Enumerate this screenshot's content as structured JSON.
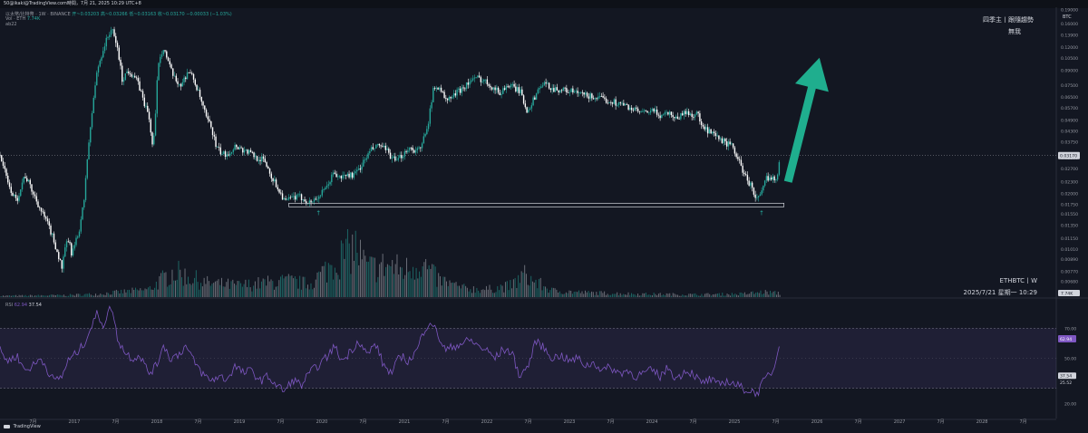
{
  "window": {
    "title": "50@ikaki@TradingView.com時間，7月 21, 2025 10:29 UTC+8"
  },
  "legend": {
    "symbol_line": "以太幣/比特幣 · 1W · BINANCE",
    "ohlc_open": "开~0.03203",
    "ohlc_high": "高~0.03266",
    "ohlc_low": "低~0.03163",
    "ohlc_close": "收~0.03170",
    "ohlc_change": "−0.00033 (−1.03%)",
    "volume_line": "Vol · ETH",
    "volume_value": "7.74K",
    "extra_line": "ab22"
  },
  "rsi_legend": {
    "label": "RSI",
    "value1": "62.94",
    "value2": "37.54"
  },
  "annotations": {
    "watermark_line1": "四季主丨跟隨趨勢",
    "watermark_line2": "無我",
    "symbol_tf": "ETHBTC丨W",
    "datetime": "2025/7/21 星期一 10:29"
  },
  "footer": {
    "brand": "TradingView"
  },
  "colors": {
    "background": "#131722",
    "up": "#26a69a",
    "down": "#ffffff",
    "arrow": "#1fae8e",
    "rsi_line": "#7e57c2",
    "rsi_band": "#7e57c2"
  },
  "chart_data": {
    "type": "candlestick",
    "symbol": "ETHBTC",
    "timeframe": "1W",
    "price_axis": {
      "scale": "log",
      "ylim": [
        0.0056,
        0.195
      ],
      "ticks": [
        0.19,
        0.16,
        0.139,
        0.12,
        0.105,
        0.09,
        0.075,
        0.065,
        0.057,
        0.049,
        0.043,
        0.0375,
        0.031,
        0.027,
        0.023,
        0.02,
        0.0175,
        0.0155,
        0.0135,
        0.0115,
        0.0101,
        0.0089,
        0.0077,
        0.0068,
        0.006
      ],
      "tick_labels": [
        "0.19000",
        "0.16000",
        "0.13900",
        "0.12000",
        "0.10500",
        "0.09000",
        "0.07500",
        "0.06500",
        "0.05700",
        "0.04900",
        "0.04300",
        "0.03750",
        "0.03100",
        "0.02700",
        "0.02300",
        "0.02000",
        "0.01750",
        "0.01550",
        "0.01350",
        "0.01150",
        "0.01010",
        "0.00890",
        "0.00770",
        "0.00680",
        "0.00600"
      ],
      "unit_label": "BTC",
      "last_price": 0.0317,
      "last_price_label": "0.03170",
      "volume_label": "7.74K"
    },
    "time_axis": {
      "labels": [
        "7月",
        "2017",
        "7月",
        "2018",
        "7月",
        "2019",
        "7月",
        "2020",
        "7月",
        "2021",
        "7月",
        "2022",
        "7月",
        "2023",
        "7月",
        "2024",
        "7月",
        "2025",
        "7月",
        "2026",
        "7月",
        "2027",
        "7月",
        "2028",
        "7月"
      ],
      "positions": [
        2016.5,
        2017.0,
        2017.5,
        2018.0,
        2018.5,
        2019.0,
        2019.5,
        2020.0,
        2020.5,
        2021.0,
        2021.5,
        2022.0,
        2022.5,
        2023.0,
        2023.5,
        2024.0,
        2024.5,
        2025.0,
        2025.5,
        2026.0,
        2026.5,
        2027.0,
        2027.5,
        2028.0,
        2028.5
      ],
      "range": [
        2016.1,
        2028.9
      ]
    },
    "price_path": [
      [
        2016.1,
        0.032
      ],
      [
        2016.2,
        0.022
      ],
      [
        2016.3,
        0.018
      ],
      [
        2016.4,
        0.025
      ],
      [
        2016.5,
        0.02
      ],
      [
        2016.6,
        0.016
      ],
      [
        2016.7,
        0.013
      ],
      [
        2016.8,
        0.0095
      ],
      [
        2016.85,
        0.008
      ],
      [
        2016.92,
        0.0115
      ],
      [
        2016.97,
        0.0095
      ],
      [
        2017.05,
        0.012
      ],
      [
        2017.12,
        0.018
      ],
      [
        2017.2,
        0.045
      ],
      [
        2017.28,
        0.09
      ],
      [
        2017.36,
        0.12
      ],
      [
        2017.45,
        0.15
      ],
      [
        2017.52,
        0.12
      ],
      [
        2017.58,
        0.08
      ],
      [
        2017.65,
        0.09
      ],
      [
        2017.72,
        0.085
      ],
      [
        2017.78,
        0.075
      ],
      [
        2017.85,
        0.06
      ],
      [
        2017.9,
        0.052
      ],
      [
        2017.95,
        0.035
      ],
      [
        2017.98,
        0.045
      ],
      [
        2018.02,
        0.1
      ],
      [
        2018.08,
        0.12
      ],
      [
        2018.15,
        0.095
      ],
      [
        2018.22,
        0.08
      ],
      [
        2018.3,
        0.075
      ],
      [
        2018.38,
        0.09
      ],
      [
        2018.45,
        0.08
      ],
      [
        2018.52,
        0.065
      ],
      [
        2018.6,
        0.05
      ],
      [
        2018.66,
        0.045
      ],
      [
        2018.72,
        0.035
      ],
      [
        2018.8,
        0.032
      ],
      [
        2018.88,
        0.033
      ],
      [
        2018.96,
        0.036
      ],
      [
        2019.04,
        0.034
      ],
      [
        2019.12,
        0.033
      ],
      [
        2019.2,
        0.031
      ],
      [
        2019.3,
        0.03
      ],
      [
        2019.4,
        0.024
      ],
      [
        2019.5,
        0.02
      ],
      [
        2019.56,
        0.018
      ],
      [
        2019.65,
        0.019
      ],
      [
        2019.75,
        0.019
      ],
      [
        2019.85,
        0.0178
      ],
      [
        2019.95,
        0.019
      ],
      [
        2020.05,
        0.021
      ],
      [
        2020.15,
        0.026
      ],
      [
        2020.2,
        0.024
      ],
      [
        2020.3,
        0.025
      ],
      [
        2020.4,
        0.025
      ],
      [
        2020.5,
        0.029
      ],
      [
        2020.6,
        0.034
      ],
      [
        2020.7,
        0.036
      ],
      [
        2020.8,
        0.033
      ],
      [
        2020.9,
        0.029
      ],
      [
        2020.95,
        0.031
      ],
      [
        2021.05,
        0.035
      ],
      [
        2021.12,
        0.034
      ],
      [
        2021.2,
        0.034
      ],
      [
        2021.3,
        0.05
      ],
      [
        2021.35,
        0.07
      ],
      [
        2021.42,
        0.075
      ],
      [
        2021.5,
        0.062
      ],
      [
        2021.58,
        0.065
      ],
      [
        2021.66,
        0.07
      ],
      [
        2021.74,
        0.075
      ],
      [
        2021.82,
        0.08
      ],
      [
        2021.9,
        0.082
      ],
      [
        2022.0,
        0.078
      ],
      [
        2022.08,
        0.073
      ],
      [
        2022.16,
        0.068
      ],
      [
        2022.24,
        0.075
      ],
      [
        2022.32,
        0.073
      ],
      [
        2022.4,
        0.07
      ],
      [
        2022.48,
        0.055
      ],
      [
        2022.56,
        0.062
      ],
      [
        2022.64,
        0.074
      ],
      [
        2022.72,
        0.076
      ],
      [
        2022.8,
        0.072
      ],
      [
        2022.9,
        0.071
      ],
      [
        2023.0,
        0.07
      ],
      [
        2023.1,
        0.068
      ],
      [
        2023.2,
        0.066
      ],
      [
        2023.3,
        0.065
      ],
      [
        2023.4,
        0.063
      ],
      [
        2023.5,
        0.062
      ],
      [
        2023.6,
        0.06
      ],
      [
        2023.7,
        0.058
      ],
      [
        2023.8,
        0.055
      ],
      [
        2023.9,
        0.053
      ],
      [
        2024.0,
        0.055
      ],
      [
        2024.1,
        0.052
      ],
      [
        2024.2,
        0.054
      ],
      [
        2024.3,
        0.05
      ],
      [
        2024.4,
        0.054
      ],
      [
        2024.5,
        0.052
      ],
      [
        2024.55,
        0.054
      ],
      [
        2024.6,
        0.045
      ],
      [
        2024.7,
        0.042
      ],
      [
        2024.8,
        0.039
      ],
      [
        2024.9,
        0.037
      ],
      [
        2024.98,
        0.035
      ],
      [
        2025.05,
        0.03
      ],
      [
        2025.12,
        0.025
      ],
      [
        2025.2,
        0.022
      ],
      [
        2025.25,
        0.019
      ],
      [
        2025.3,
        0.0188
      ],
      [
        2025.34,
        0.0205
      ],
      [
        2025.38,
        0.024
      ],
      [
        2025.42,
        0.0237
      ],
      [
        2025.46,
        0.025
      ],
      [
        2025.49,
        0.0235
      ],
      [
        2025.52,
        0.0255
      ],
      [
        2025.55,
        0.0317
      ]
    ],
    "volume_profile": {
      "scale_max": 100,
      "path": [
        [
          2016.1,
          2
        ],
        [
          2016.9,
          3
        ],
        [
          2017.3,
          5
        ],
        [
          2017.9,
          12
        ],
        [
          2018.2,
          40
        ],
        [
          2018.6,
          22
        ],
        [
          2019.0,
          18
        ],
        [
          2019.3,
          22
        ],
        [
          2019.6,
          25
        ],
        [
          2019.85,
          20
        ],
        [
          2020.2,
          60
        ],
        [
          2020.4,
          80
        ],
        [
          2020.55,
          45
        ],
        [
          2020.8,
          50
        ],
        [
          2021.0,
          42
        ],
        [
          2021.2,
          55
        ],
        [
          2021.4,
          28
        ],
        [
          2021.7,
          14
        ],
        [
          2022.0,
          12
        ],
        [
          2022.3,
          18
        ],
        [
          2022.45,
          35
        ],
        [
          2022.55,
          26
        ],
        [
          2022.8,
          10
        ],
        [
          2023.2,
          7
        ],
        [
          2023.8,
          5
        ],
        [
          2024.5,
          4
        ],
        [
          2025.1,
          5
        ],
        [
          2025.35,
          8
        ],
        [
          2025.55,
          6
        ]
      ]
    },
    "support_line": {
      "price": 0.0173,
      "from": 2019.6,
      "to": 2025.6
    },
    "markers": [
      {
        "x": 2019.95,
        "symbol": "↑"
      },
      {
        "x": 2025.32,
        "symbol": "↑"
      }
    ],
    "projection_arrow": {
      "from": [
        2025.65,
        0.023
      ],
      "to": [
        2026.03,
        0.105
      ]
    },
    "rsi": {
      "name": "RSI",
      "levels": [
        70,
        30
      ],
      "ylim": [
        10,
        90
      ],
      "axis_ticks": [
        70,
        50,
        20
      ],
      "axis_tick_labels": [
        "70.00",
        "50.00",
        "20.00"
      ],
      "value_label": "62.94",
      "ma_label": "37.54",
      "extra_label": "25.52",
      "path": [
        [
          2016.1,
          55
        ],
        [
          2016.2,
          48
        ],
        [
          2016.3,
          52
        ],
        [
          2016.4,
          42
        ],
        [
          2016.5,
          45
        ],
        [
          2016.6,
          50
        ],
        [
          2016.75,
          35
        ],
        [
          2016.85,
          38
        ],
        [
          2016.92,
          48
        ],
        [
          2017.0,
          52
        ],
        [
          2017.1,
          58
        ],
        [
          2017.2,
          70
        ],
        [
          2017.28,
          80
        ],
        [
          2017.35,
          72
        ],
        [
          2017.45,
          85
        ],
        [
          2017.52,
          64
        ],
        [
          2017.6,
          55
        ],
        [
          2017.7,
          50
        ],
        [
          2017.8,
          52
        ],
        [
          2017.9,
          40
        ],
        [
          2018.0,
          45
        ],
        [
          2018.08,
          60
        ],
        [
          2018.15,
          50
        ],
        [
          2018.25,
          52
        ],
        [
          2018.35,
          58
        ],
        [
          2018.45,
          48
        ],
        [
          2018.55,
          40
        ],
        [
          2018.65,
          35
        ],
        [
          2018.75,
          38
        ],
        [
          2018.85,
          36
        ],
        [
          2018.95,
          45
        ],
        [
          2019.05,
          40
        ],
        [
          2019.15,
          42
        ],
        [
          2019.25,
          35
        ],
        [
          2019.35,
          38
        ],
        [
          2019.45,
          32
        ],
        [
          2019.55,
          28
        ],
        [
          2019.65,
          36
        ],
        [
          2019.75,
          32
        ],
        [
          2019.85,
          40
        ],
        [
          2019.95,
          45
        ],
        [
          2020.05,
          50
        ],
        [
          2020.15,
          58
        ],
        [
          2020.25,
          48
        ],
        [
          2020.35,
          55
        ],
        [
          2020.45,
          62
        ],
        [
          2020.55,
          52
        ],
        [
          2020.65,
          60
        ],
        [
          2020.75,
          45
        ],
        [
          2020.85,
          40
        ],
        [
          2020.95,
          52
        ],
        [
          2021.05,
          48
        ],
        [
          2021.15,
          55
        ],
        [
          2021.25,
          70
        ],
        [
          2021.32,
          75
        ],
        [
          2021.4,
          66
        ],
        [
          2021.5,
          55
        ],
        [
          2021.6,
          58
        ],
        [
          2021.7,
          60
        ],
        [
          2021.8,
          62
        ],
        [
          2021.9,
          58
        ],
        [
          2022.0,
          55
        ],
        [
          2022.1,
          50
        ],
        [
          2022.2,
          56
        ],
        [
          2022.3,
          54
        ],
        [
          2022.4,
          38
        ],
        [
          2022.5,
          45
        ],
        [
          2022.6,
          62
        ],
        [
          2022.7,
          56
        ],
        [
          2022.8,
          50
        ],
        [
          2022.9,
          52
        ],
        [
          2023.0,
          48
        ],
        [
          2023.1,
          50
        ],
        [
          2023.2,
          45
        ],
        [
          2023.3,
          47
        ],
        [
          2023.4,
          42
        ],
        [
          2023.5,
          44
        ],
        [
          2023.6,
          40
        ],
        [
          2023.7,
          42
        ],
        [
          2023.8,
          38
        ],
        [
          2023.9,
          40
        ],
        [
          2024.0,
          42
        ],
        [
          2024.1,
          38
        ],
        [
          2024.2,
          44
        ],
        [
          2024.3,
          36
        ],
        [
          2024.4,
          42
        ],
        [
          2024.5,
          40
        ],
        [
          2024.6,
          33
        ],
        [
          2024.7,
          36
        ],
        [
          2024.8,
          32
        ],
        [
          2024.9,
          35
        ],
        [
          2025.0,
          33
        ],
        [
          2025.1,
          30
        ],
        [
          2025.2,
          28
        ],
        [
          2025.28,
          27
        ],
        [
          2025.35,
          34
        ],
        [
          2025.42,
          40
        ],
        [
          2025.48,
          42
        ],
        [
          2025.55,
          63
        ]
      ]
    }
  }
}
